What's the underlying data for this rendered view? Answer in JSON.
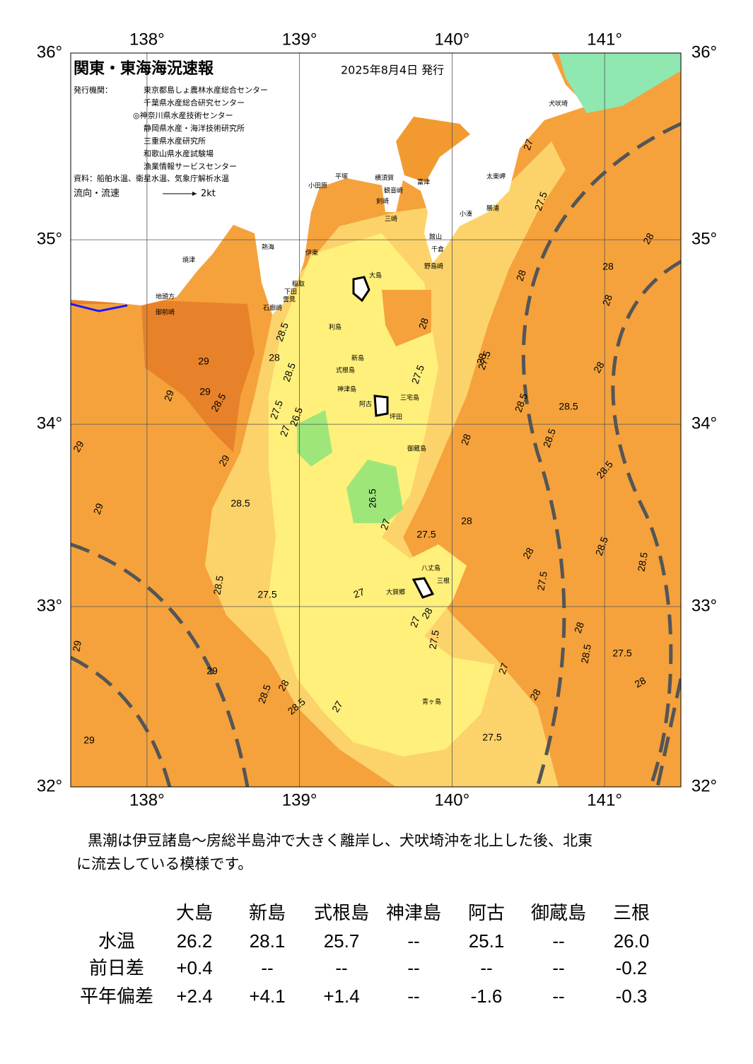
{
  "map": {
    "title": "関東・東海海況速報",
    "date": "2025年8月4日 発行",
    "agency_label": "発行機関：",
    "agencies": [
      "東京都島しょ農林水産総合センター",
      "千葉県水産総合研究センター",
      "◎神奈川県水産技術センター",
      "静岡県水産・海洋技術研究所",
      "三重県水産研究所",
      "和歌山県水産試験場",
      "漁業情報サービスセンター"
    ],
    "source": "資料：船舶水温、衛星水温、気象庁解析水温",
    "legend_label": "流向・流速",
    "legend_speed": "2kt",
    "xlim": [
      137.5,
      141.5
    ],
    "ylim": [
      32,
      36
    ],
    "xticks": [
      {
        "value": 138,
        "label": "138°"
      },
      {
        "value": 139,
        "label": "139°"
      },
      {
        "value": 140,
        "label": "140°"
      },
      {
        "value": 141,
        "label": "141°"
      }
    ],
    "yticks": [
      {
        "value": 32,
        "label": "32°"
      },
      {
        "value": 33,
        "label": "33°"
      },
      {
        "value": 34,
        "label": "34°"
      },
      {
        "value": 35,
        "label": "35°"
      },
      {
        "value": 36,
        "label": "36°"
      }
    ],
    "places": [
      "犬吠埼",
      "太東岬",
      "勝浦",
      "小湊",
      "富津",
      "横須賀",
      "平塚",
      "小田原",
      "観音崎",
      "剣崎",
      "三崎",
      "館山",
      "千倉",
      "野島崎",
      "熱海",
      "伊東",
      "焼津",
      "稲取",
      "下田",
      "雲見",
      "石廊崎",
      "地頭方",
      "御前崎",
      "大島",
      "利島",
      "新島",
      "式根島",
      "神津島",
      "三宅島",
      "阿古",
      "坪田",
      "御蔵島",
      "八丈島",
      "三根",
      "大賀郷",
      "青ヶ島"
    ],
    "contour_labels": [
      "27",
      "28",
      "27.5",
      "28",
      "28",
      "28",
      "28.5",
      "28",
      "28",
      "29",
      "28.5",
      "29",
      "29",
      "28.5",
      "29",
      "29",
      "29",
      "28.5",
      "27.5",
      "27",
      "26.5",
      "27.5",
      "28",
      "27.5",
      "28",
      "26.5",
      "27",
      "27.5",
      "28",
      "28.5",
      "28",
      "28.5",
      "28.5",
      "28.5",
      "28",
      "27.5",
      "28.5",
      "28",
      "27.5",
      "27",
      "28",
      "28.5",
      "27.5",
      "27",
      "28.5",
      "28",
      "28.5",
      "27",
      "27",
      "27.5",
      "28",
      "28.5",
      "29",
      "28.5",
      "27.5",
      "29",
      "29",
      "28"
    ]
  },
  "comment": [
    "黒潮は伊豆諸島～房総半島沖で大きく離岸し、犬吠埼沖を北上した後、北東",
    "に流去している模様です。"
  ],
  "table": {
    "header": [
      "大島",
      "新島",
      "式根島",
      "神津島",
      "阿古",
      "御蔵島",
      "三根"
    ],
    "rows": [
      [
        "水温",
        "26.2",
        "28.1",
        "25.7",
        "--",
        "25.1",
        "--",
        "26.0"
      ],
      [
        "前日差",
        "+0.4",
        "--",
        "--",
        "--",
        "--",
        "--",
        "-0.2"
      ],
      [
        "平年偏差",
        "+2.4",
        "+4.1",
        "+1.4",
        "--",
        "-1.6",
        "--",
        "-0.3"
      ]
    ]
  }
}
